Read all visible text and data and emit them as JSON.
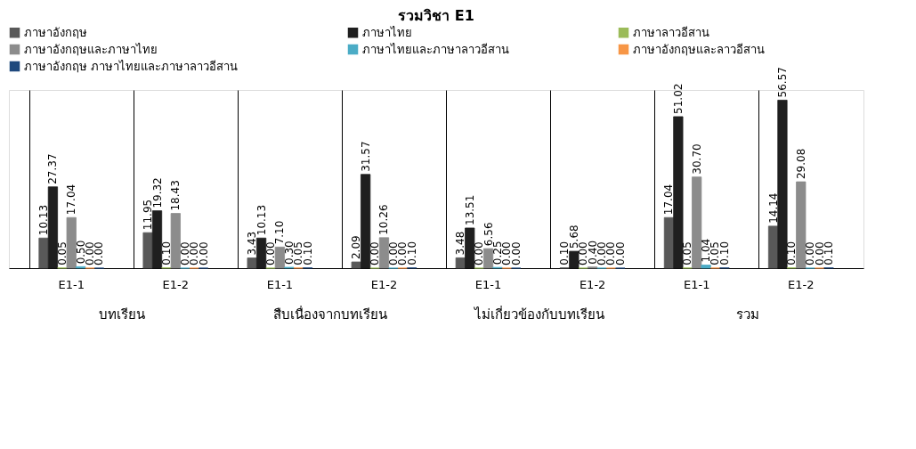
{
  "chart_data": {
    "type": "bar",
    "title": "รวมวิชา  E1",
    "categories": [
      "E1-1",
      "E1-2",
      "E1-1",
      "E1-2",
      "E1-1",
      "E1-2",
      "E1-1",
      "E1-2"
    ],
    "series": [
      {
        "name": "ภาษาอังกฤษ",
        "color": "#595959",
        "values": [
          10.13,
          11.95,
          3.43,
          2.09,
          3.48,
          0.1,
          17.04,
          14.14
        ],
        "value_labels": [
          "10.13",
          "11.95",
          "3.43",
          "2.09",
          "3.48",
          "0.10",
          "17.04",
          "14.14"
        ]
      },
      {
        "name": "ภาษาไทย",
        "color": "#1f1f1f",
        "values": [
          27.37,
          19.32,
          10.13,
          31.57,
          13.51,
          5.68,
          51.02,
          56.57
        ],
        "value_labels": [
          "27.37",
          "19.32",
          "10.13",
          "31.57",
          "13.51",
          "5.68",
          "51.02",
          "56.57"
        ]
      },
      {
        "name": "ภาษาลาวอีสาน",
        "color": "#9bbb59",
        "values": [
          0.05,
          0.1,
          0.0,
          0.0,
          0.0,
          0.0,
          0.05,
          0.1
        ],
        "value_labels": [
          "0.05",
          "0.10",
          "0.00",
          "0.00",
          "0.00",
          "0.00",
          "0.05",
          "0.10"
        ]
      },
      {
        "name": "ภาษาอังกฤษและภาษาไทย",
        "color": "#8c8c8c",
        "values": [
          17.04,
          18.43,
          7.1,
          10.26,
          6.56,
          0.4,
          30.7,
          29.08
        ],
        "value_labels": [
          "17.04",
          "18.43",
          "7.10",
          "10.26",
          "6.56",
          "0.40",
          "30.70",
          "29.08"
        ]
      },
      {
        "name": "ภาษาไทยและภาษาลาวอีสาน",
        "color": "#4bacc6",
        "values": [
          0.5,
          0.0,
          0.3,
          0.0,
          0.25,
          0.0,
          1.04,
          0.0
        ],
        "value_labels": [
          "0.50",
          "0.00",
          "0.30",
          "0.00",
          "0.25",
          "0.00",
          "1.04",
          "0.00"
        ]
      },
      {
        "name": "ภาษาอังกฤษและลาวอีสาน",
        "color": "#f79646",
        "values": [
          0.0,
          0.0,
          0.05,
          0.0,
          0.0,
          0.0,
          0.05,
          0.0
        ],
        "value_labels": [
          "0.00",
          "0.00",
          "0.05",
          "0.00",
          "0.00",
          "0.00",
          "0.05",
          "0.00"
        ]
      },
      {
        "name": "ภาษาอังกฤษ ภาษาไทยและภาษาลาวอีสาน",
        "color": "#1f497d",
        "values": [
          0.0,
          0.0,
          0.1,
          0.1,
          0.0,
          0.0,
          0.1,
          0.1
        ],
        "value_labels": [
          "0.00",
          "0.00",
          "0.10",
          "0.10",
          "0.00",
          "0.00",
          "0.10",
          "0.10"
        ]
      }
    ],
    "annotations": [
      "บทเรียน",
      "สืบเนื่องจากบทเรียน",
      "ไม่เกี่ยวข้องกับบทเรียน",
      "รวม"
    ],
    "legend": "top",
    "grid": "x"
  }
}
